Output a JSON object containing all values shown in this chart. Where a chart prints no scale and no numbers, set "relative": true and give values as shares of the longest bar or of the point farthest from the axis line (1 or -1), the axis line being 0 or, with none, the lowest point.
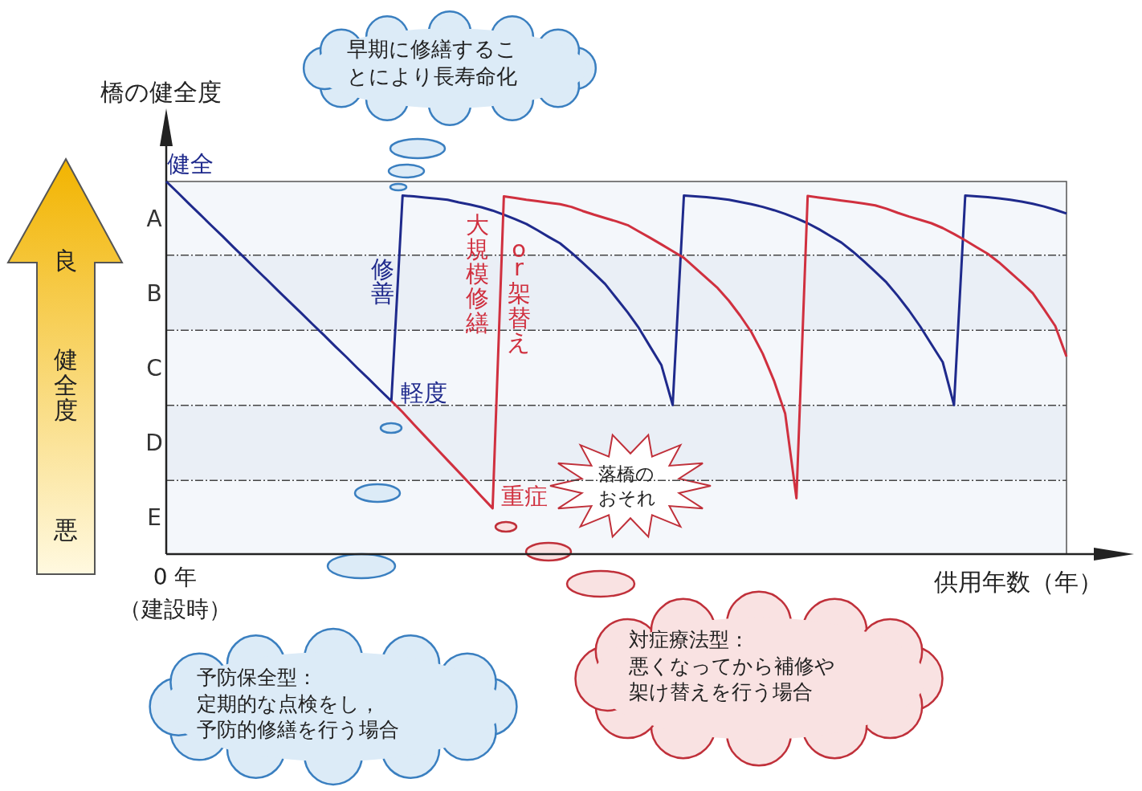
{
  "chart_data": {
    "type": "line",
    "relative": true,
    "ylabel": "橋の健全度",
    "xlabel": "供用年数（年）",
    "legend": false,
    "marker": "none",
    "line_style": "solid",
    "categories": [
      null,
      null,
      null,
      null,
      null,
      null,
      null,
      null,
      null,
      null,
      null,
      null,
      null,
      null,
      null,
      null,
      null,
      null,
      null,
      null,
      null,
      null,
      null,
      null,
      null,
      null,
      null,
      null,
      null,
      null,
      null,
      null,
      null,
      null,
      null,
      null,
      null,
      null,
      null,
      null,
      null,
      null,
      null,
      null,
      null,
      null,
      null,
      null,
      null,
      null,
      null,
      null,
      null,
      null,
      null,
      null,
      null,
      null,
      null,
      null,
      null,
      null,
      null,
      null,
      null,
      null,
      null,
      null,
      null,
      null,
      null,
      null,
      null,
      null,
      null,
      null,
      null,
      null,
      null,
      null,
      null
    ],
    "series": [
      {
        "color": "#1f2a8c",
        "values": [
          1,
          0.971,
          0.941,
          0.912,
          0.882,
          0.853,
          0.823,
          0.794,
          0.764,
          0.735,
          0.705,
          0.676,
          0.647,
          0.617,
          0.588,
          0.558,
          0.529,
          0.499,
          0.47,
          0.44,
          0.411,
          0.962,
          0.96,
          0.957,
          0.954,
          0.951,
          0.944,
          0.938,
          0.931,
          0.922,
          0.911,
          0.899,
          0.886,
          0.869,
          0.851,
          0.834,
          0.809,
          0.782,
          0.754,
          0.725,
          0.687,
          0.649,
          0.607,
          0.557,
          0.507,
          0.4,
          0.962,
          0.96,
          0.958,
          0.955,
          0.951,
          0.945,
          0.939,
          0.932,
          0.923,
          0.913,
          0.901,
          0.888,
          0.872,
          0.854,
          0.836,
          0.812,
          0.786,
          0.758,
          0.729,
          0.693,
          0.654,
          0.611,
          0.563,
          0.515,
          0.4,
          0.962,
          0.96,
          0.958,
          0.955,
          0.951,
          0.946,
          0.94,
          0.933,
          0.924,
          0.914
        ]
      },
      {
        "color": "#d0303f",
        "values": [
          null,
          null,
          null,
          null,
          null,
          null,
          null,
          null,
          null,
          null,
          null,
          null,
          null,
          null,
          null,
          null,
          null,
          null,
          null,
          null,
          0.411,
          0.381,
          0.348,
          0.316,
          0.284,
          0.252,
          0.22,
          0.188,
          0.155,
          0.123,
          0.96,
          0.956,
          0.951,
          0.947,
          0.943,
          0.939,
          0.932,
          0.921,
          0.911,
          0.902,
          0.893,
          0.883,
          0.866,
          0.849,
          0.831,
          0.813,
          0.795,
          0.768,
          0.741,
          0.714,
          0.68,
          0.64,
          0.596,
          0.538,
          0.466,
          0.377,
          0.15,
          0.961,
          0.957,
          0.953,
          0.949,
          0.945,
          0.941,
          0.936,
          0.927,
          0.916,
          0.906,
          0.897,
          0.888,
          0.875,
          0.859,
          0.842,
          0.824,
          0.806,
          0.783,
          0.756,
          0.729,
          0.7,
          0.657,
          0.612,
          0.53
        ]
      }
    ],
    "bands": [
      {
        "axis": "y",
        "from": 0.802,
        "to": 1,
        "label": "A",
        "color": "#f4f7fb"
      },
      {
        "axis": "y",
        "from": 0.601,
        "to": 0.802,
        "label": "B",
        "color": "#eaeff6"
      },
      {
        "axis": "y",
        "from": 0.399,
        "to": 0.601,
        "label": "C",
        "color": "#f4f7fb"
      },
      {
        "axis": "y",
        "from": 0.198,
        "to": 0.399,
        "label": "D",
        "color": "#eaeff6"
      },
      {
        "axis": "y",
        "from": 0,
        "to": 0.198,
        "label": "E",
        "color": "#f4f7fb"
      }
    ],
    "annotations": [
      "早期に修繕することにより長寿命化",
      "予防保全型：定期的な点検をし，予防的修繕を行う場合",
      "対症療法型：悪くなってから補修や架け替えを行う場合",
      "健全",
      "軽度",
      "重症",
      "修善",
      "大規模修繕",
      "or 架替え",
      "落橋のおそれ",
      "良",
      "健全度",
      "悪",
      "（建設時）",
      "0 年"
    ]
  }
}
